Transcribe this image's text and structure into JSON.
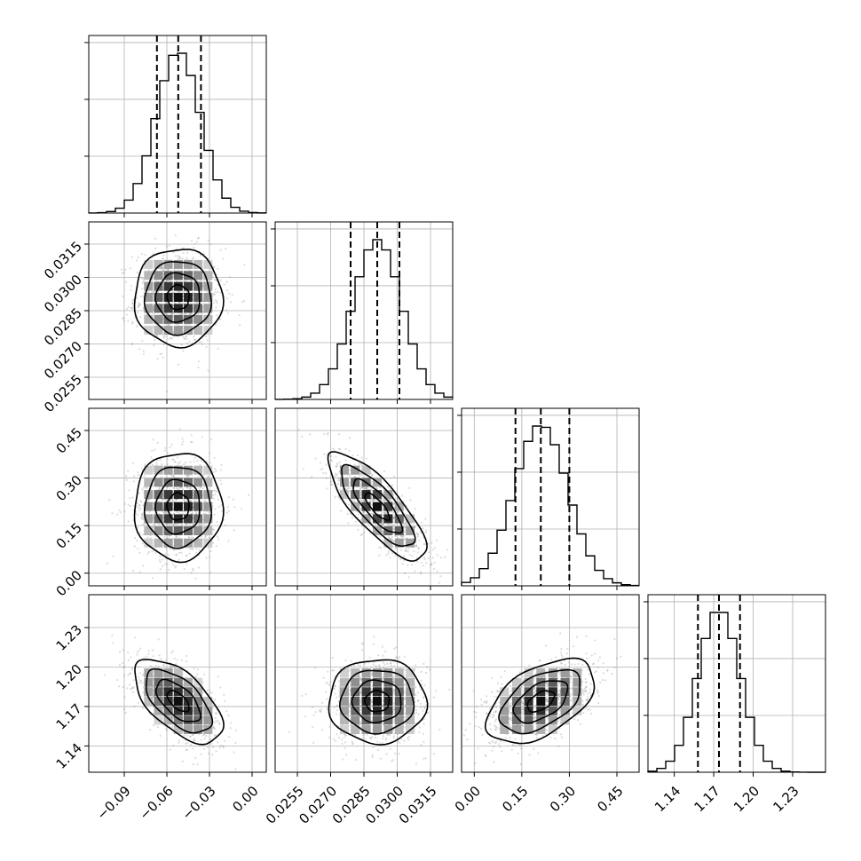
{
  "chart_data": {
    "type": "corner",
    "title": "",
    "grid": true,
    "colors": {
      "line": "#000000",
      "points": "#808080",
      "grid": "#b0b0b0"
    },
    "params": [
      {
        "label": "",
        "range": [
          -0.115,
          0.01
        ],
        "ticks": [
          -0.09,
          -0.06,
          -0.03,
          0.0
        ],
        "tick_labels": [
          "−0.09",
          "−0.06",
          "−0.03",
          "0.00"
        ],
        "quantiles": [
          -0.067,
          -0.052,
          -0.036
        ],
        "mean": -0.052,
        "std": 0.0155
      },
      {
        "label": "",
        "range": [
          0.0245,
          0.0325
        ],
        "ticks": [
          0.0255,
          0.027,
          0.0285,
          0.03,
          0.0315
        ],
        "tick_labels": [
          "0.0255",
          "0.0270",
          "0.0285",
          "0.0300",
          "0.0315"
        ],
        "quantiles": [
          0.0279,
          0.0291,
          0.0301
        ],
        "mean": 0.0291,
        "std": 0.0011
      },
      {
        "label": "",
        "range": [
          -0.04,
          0.52
        ],
        "ticks": [
          0.0,
          0.15,
          0.3,
          0.45
        ],
        "tick_labels": [
          "0.00",
          "0.15",
          "0.30",
          "0.45"
        ],
        "quantiles": [
          0.13,
          0.21,
          0.3
        ],
        "mean": 0.21,
        "std": 0.085
      },
      {
        "label": "",
        "range": [
          1.12,
          1.255
        ],
        "ticks": [
          1.14,
          1.17,
          1.2,
          1.23
        ],
        "tick_labels": [
          "1.14",
          "1.17",
          "1.20",
          "1.23"
        ],
        "quantiles": [
          1.158,
          1.174,
          1.19
        ],
        "mean": 1.174,
        "std": 0.016
      }
    ],
    "correlations": [
      [
        1.0,
        0.0,
        0.0,
        -0.6
      ],
      [
        0.0,
        1.0,
        -0.8,
        0.0
      ],
      [
        0.0,
        -0.8,
        1.0,
        0.5
      ],
      [
        -0.6,
        0.0,
        0.5,
        1.0
      ]
    ],
    "contour_levels_sigma": [
      0.5,
      1.0,
      1.5,
      2.0
    ]
  }
}
